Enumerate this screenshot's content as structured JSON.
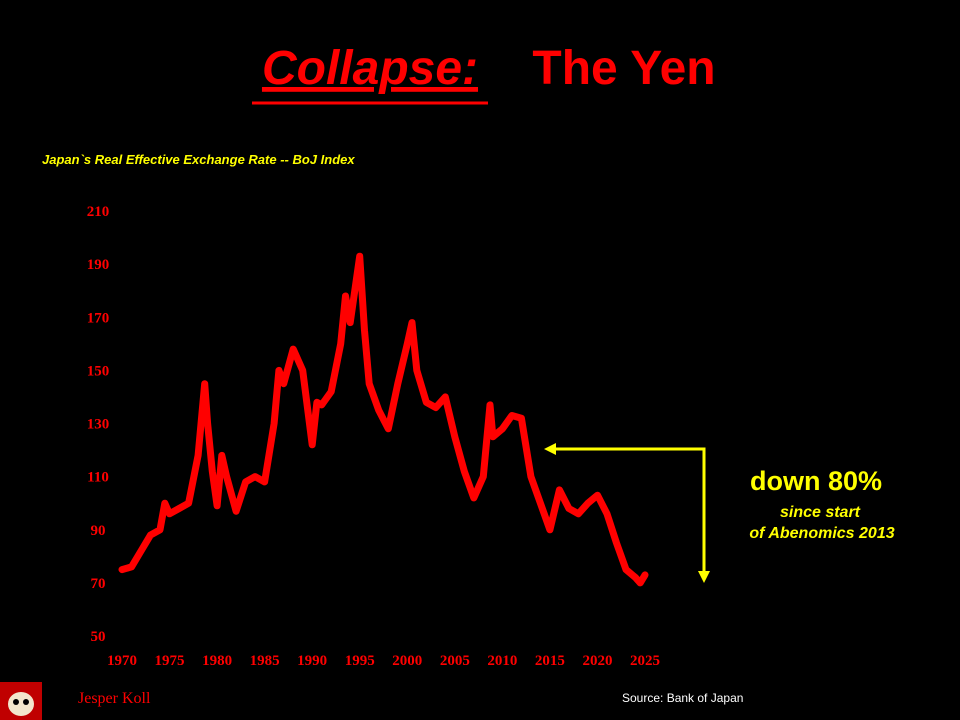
{
  "chart_data": {
    "type": "line",
    "title": {
      "emphasis": "Collapse:",
      "main": "The Yen"
    },
    "subtitle": "Japan`s Real Effective Exchange Rate -- BoJ Index",
    "x": [
      1970,
      1971,
      1972,
      1973,
      1974,
      1974.5,
      1975,
      1976,
      1977,
      1978,
      1978.7,
      1979,
      1979.5,
      1980,
      1980.5,
      1981,
      1982,
      1983,
      1984,
      1985,
      1986,
      1986.5,
      1987,
      1988,
      1989,
      1990,
      1990.5,
      1991,
      1992,
      1993,
      1993.5,
      1994,
      1995,
      1995.5,
      1996,
      1997,
      1998,
      1999,
      2000,
      2000.5,
      2001,
      2002,
      2003,
      2004,
      2005,
      2006,
      2007,
      2008,
      2008.7,
      2009,
      2010,
      2011,
      2012,
      2013,
      2014,
      2015,
      2016,
      2017,
      2018,
      2019,
      2020,
      2021,
      2022,
      2023,
      2024,
      2024.5,
      2025
    ],
    "values": [
      75,
      76,
      82,
      88,
      90,
      100,
      96,
      98,
      100,
      118,
      145,
      130,
      112,
      99,
      118,
      110,
      97,
      108,
      110,
      108,
      130,
      150,
      145,
      158,
      150,
      122,
      138,
      137,
      142,
      160,
      178,
      168,
      193,
      165,
      145,
      135,
      128,
      145,
      160,
      168,
      150,
      138,
      136,
      140,
      125,
      112,
      102,
      110,
      137,
      125,
      128,
      133,
      132,
      110,
      100,
      90,
      105,
      98,
      96,
      100,
      103,
      96,
      85,
      75,
      72,
      70,
      73
    ],
    "color": "#ff0000",
    "xlim": [
      1970,
      2025
    ],
    "xticks": [
      1970,
      1975,
      1980,
      1985,
      1990,
      1995,
      2000,
      2005,
      2010,
      2015,
      2020,
      2025
    ],
    "ylim": [
      50,
      210
    ],
    "yticks": [
      50,
      70,
      90,
      110,
      130,
      150,
      170,
      190,
      210
    ],
    "grid": false,
    "annotations": [
      "down 80%",
      "since start",
      "of Abenomics 2013"
    ]
  },
  "footer": {
    "author": "Jesper Koll",
    "source": "Source: Bank of Japan"
  }
}
